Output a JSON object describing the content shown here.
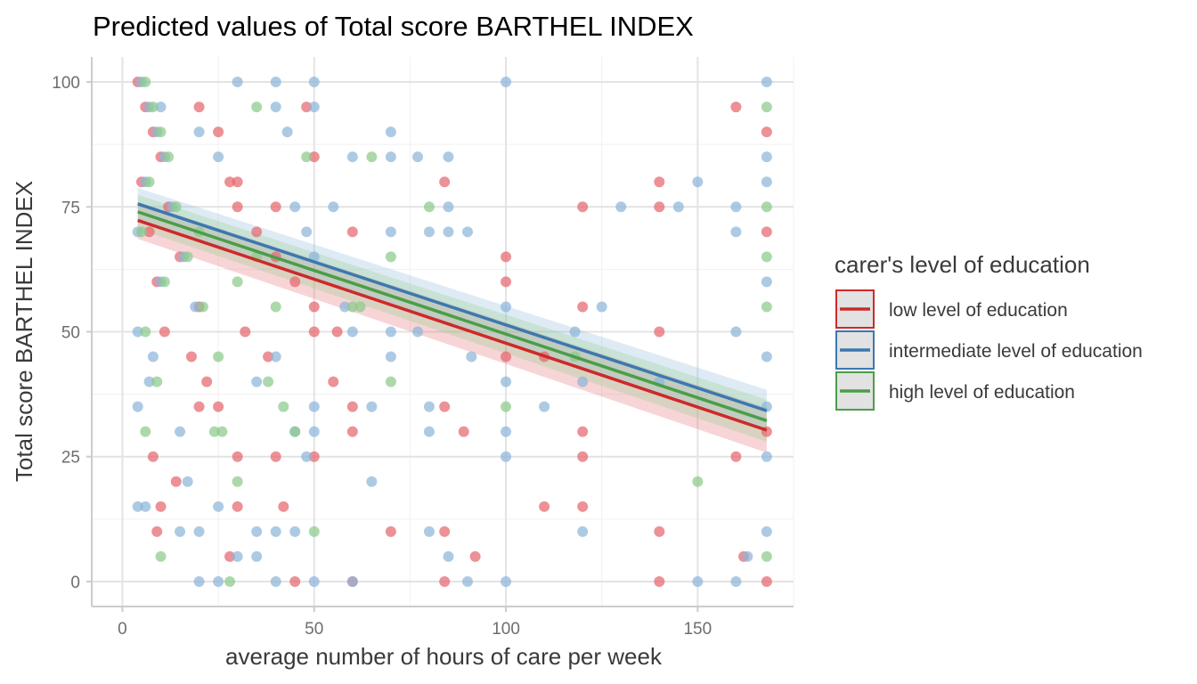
{
  "chart_data": {
    "type": "scatter",
    "title": "Predicted values of Total score BARTHEL INDEX",
    "xlabel": "average number of hours of care per week",
    "ylabel": "Total score BARTHEL INDEX",
    "xlim": [
      -8,
      175
    ],
    "ylim": [
      -5,
      105
    ],
    "x_ticks": [
      0,
      50,
      100,
      150
    ],
    "y_ticks": [
      0,
      25,
      50,
      75,
      100
    ],
    "grid": true,
    "legend": {
      "title": "carer's level of education",
      "placement": "right",
      "items": [
        {
          "label": "low level of education",
          "color": "#CC2A2A"
        },
        {
          "label": "intermediate level of education",
          "color": "#3C78B0"
        },
        {
          "label": "high level of education",
          "color": "#4A9E48"
        }
      ]
    },
    "series": [
      {
        "name": "low level of education",
        "color": "#E4676E",
        "line_color": "#CC2A2A",
        "fit": {
          "x": [
            4,
            168
          ],
          "y": [
            72.3,
            30.3
          ]
        },
        "band": {
          "lower": [
            68.6,
            25.8
          ],
          "upper": [
            76.0,
            34.8
          ]
        },
        "points": [
          [
            4,
            100
          ],
          [
            6,
            95
          ],
          [
            8,
            90
          ],
          [
            10,
            85
          ],
          [
            5,
            80
          ],
          [
            12,
            75
          ],
          [
            7,
            70
          ],
          [
            15,
            65
          ],
          [
            9,
            60
          ],
          [
            20,
            55
          ],
          [
            11,
            50
          ],
          [
            18,
            45
          ],
          [
            22,
            40
          ],
          [
            25,
            35
          ],
          [
            8,
            25
          ],
          [
            14,
            20
          ],
          [
            10,
            15
          ],
          [
            9,
            10
          ],
          [
            30,
            25
          ],
          [
            20,
            95
          ],
          [
            25,
            90
          ],
          [
            28,
            80
          ],
          [
            30,
            75
          ],
          [
            35,
            70
          ],
          [
            40,
            65
          ],
          [
            45,
            60
          ],
          [
            50,
            55
          ],
          [
            32,
            50
          ],
          [
            38,
            45
          ],
          [
            55,
            40
          ],
          [
            60,
            35
          ],
          [
            60,
            30
          ],
          [
            40,
            25
          ],
          [
            42,
            15
          ],
          [
            30,
            15
          ],
          [
            50,
            25
          ],
          [
            48,
            95
          ],
          [
            50,
            85
          ],
          [
            60,
            70
          ],
          [
            70,
            10
          ],
          [
            56,
            50
          ],
          [
            84,
            80
          ],
          [
            84,
            35
          ],
          [
            89,
            30
          ],
          [
            92,
            5
          ],
          [
            84,
            0
          ],
          [
            84,
            10
          ],
          [
            100,
            65
          ],
          [
            100,
            60
          ],
          [
            100,
            45
          ],
          [
            110,
            45
          ],
          [
            110,
            15
          ],
          [
            120,
            75
          ],
          [
            120,
            55
          ],
          [
            120,
            30
          ],
          [
            120,
            25
          ],
          [
            120,
            15
          ],
          [
            140,
            80
          ],
          [
            140,
            75
          ],
          [
            140,
            50
          ],
          [
            140,
            10
          ],
          [
            140,
            0
          ],
          [
            160,
            95
          ],
          [
            160,
            25
          ],
          [
            162,
            5
          ],
          [
            168,
            90
          ],
          [
            168,
            70
          ],
          [
            168,
            30
          ],
          [
            168,
            0
          ],
          [
            45,
            0
          ],
          [
            60,
            0
          ],
          [
            28,
            5
          ],
          [
            20,
            35
          ],
          [
            30,
            80
          ],
          [
            40,
            75
          ],
          [
            50,
            50
          ]
        ]
      },
      {
        "name": "intermediate level of education",
        "color": "#8DB6D9",
        "line_color": "#3C78B0",
        "fit": {
          "x": [
            4,
            168
          ],
          "y": [
            75.6,
            34.2
          ]
        },
        "band": {
          "lower": [
            72.4,
            30.0
          ],
          "upper": [
            78.8,
            38.4
          ]
        },
        "points": [
          [
            5,
            100
          ],
          [
            7,
            95
          ],
          [
            9,
            90
          ],
          [
            11,
            85
          ],
          [
            6,
            80
          ],
          [
            13,
            75
          ],
          [
            4,
            70
          ],
          [
            16,
            65
          ],
          [
            10,
            60
          ],
          [
            19,
            55
          ],
          [
            4,
            50
          ],
          [
            8,
            45
          ],
          [
            7,
            40
          ],
          [
            4,
            35
          ],
          [
            4,
            15
          ],
          [
            6,
            15
          ],
          [
            15,
            30
          ],
          [
            17,
            20
          ],
          [
            15,
            10
          ],
          [
            10,
            95
          ],
          [
            20,
            90
          ],
          [
            25,
            85
          ],
          [
            30,
            100
          ],
          [
            40,
            100
          ],
          [
            50,
            100
          ],
          [
            50,
            95
          ],
          [
            40,
            95
          ],
          [
            43,
            90
          ],
          [
            45,
            75
          ],
          [
            48,
            70
          ],
          [
            50,
            65
          ],
          [
            55,
            75
          ],
          [
            58,
            55
          ],
          [
            60,
            50
          ],
          [
            40,
            45
          ],
          [
            35,
            40
          ],
          [
            45,
            30
          ],
          [
            50,
            35
          ],
          [
            50,
            30
          ],
          [
            48,
            25
          ],
          [
            65,
            20
          ],
          [
            65,
            35
          ],
          [
            60,
            85
          ],
          [
            70,
            90
          ],
          [
            70,
            85
          ],
          [
            70,
            70
          ],
          [
            70,
            50
          ],
          [
            70,
            45
          ],
          [
            77,
            85
          ],
          [
            77,
            50
          ],
          [
            80,
            70
          ],
          [
            80,
            35
          ],
          [
            80,
            30
          ],
          [
            80,
            10
          ],
          [
            85,
            75
          ],
          [
            85,
            70
          ],
          [
            85,
            5
          ],
          [
            85,
            85
          ],
          [
            90,
            70
          ],
          [
            91,
            45
          ],
          [
            100,
            100
          ],
          [
            100,
            55
          ],
          [
            100,
            40
          ],
          [
            100,
            30
          ],
          [
            100,
            25
          ],
          [
            100,
            0
          ],
          [
            110,
            35
          ],
          [
            118,
            50
          ],
          [
            120,
            40
          ],
          [
            120,
            10
          ],
          [
            125,
            55
          ],
          [
            130,
            75
          ],
          [
            140,
            40
          ],
          [
            145,
            75
          ],
          [
            150,
            80
          ],
          [
            150,
            0
          ],
          [
            160,
            75
          ],
          [
            160,
            70
          ],
          [
            160,
            50
          ],
          [
            160,
            0
          ],
          [
            163,
            5
          ],
          [
            168,
            100
          ],
          [
            168,
            85
          ],
          [
            168,
            80
          ],
          [
            168,
            60
          ],
          [
            168,
            45
          ],
          [
            168,
            25
          ],
          [
            168,
            10
          ],
          [
            168,
            35
          ],
          [
            20,
            0
          ],
          [
            25,
            0
          ],
          [
            30,
            5
          ],
          [
            35,
            5
          ],
          [
            40,
            0
          ],
          [
            50,
            0
          ],
          [
            60,
            0
          ],
          [
            90,
            0
          ],
          [
            25,
            15
          ],
          [
            20,
            10
          ],
          [
            35,
            10
          ],
          [
            40,
            10
          ],
          [
            45,
            10
          ]
        ]
      },
      {
        "name": "high level of education",
        "color": "#8CCB8A",
        "line_color": "#4A9E48",
        "fit": {
          "x": [
            4,
            168
          ],
          "y": [
            74.0,
            32.2
          ]
        },
        "band": {
          "lower": [
            70.6,
            28.0
          ],
          "upper": [
            77.4,
            36.4
          ]
        },
        "points": [
          [
            6,
            100
          ],
          [
            8,
            95
          ],
          [
            10,
            90
          ],
          [
            12,
            85
          ],
          [
            7,
            80
          ],
          [
            14,
            75
          ],
          [
            5,
            70
          ],
          [
            17,
            65
          ],
          [
            11,
            60
          ],
          [
            21,
            55
          ],
          [
            6,
            50
          ],
          [
            9,
            40
          ],
          [
            6,
            30
          ],
          [
            10,
            5
          ],
          [
            24,
            30
          ],
          [
            30,
            20
          ],
          [
            35,
            95
          ],
          [
            40,
            55
          ],
          [
            38,
            40
          ],
          [
            42,
            35
          ],
          [
            45,
            30
          ],
          [
            48,
            85
          ],
          [
            50,
            10
          ],
          [
            60,
            55
          ],
          [
            62,
            55
          ],
          [
            65,
            85
          ],
          [
            70,
            65
          ],
          [
            70,
            40
          ],
          [
            80,
            75
          ],
          [
            100,
            35
          ],
          [
            118,
            45
          ],
          [
            150,
            20
          ],
          [
            168,
            95
          ],
          [
            168,
            75
          ],
          [
            168,
            65
          ],
          [
            168,
            55
          ],
          [
            168,
            5
          ],
          [
            20,
            70
          ],
          [
            25,
            45
          ],
          [
            30,
            60
          ],
          [
            35,
            65
          ],
          [
            26,
            30
          ],
          [
            28,
            0
          ]
        ]
      }
    ]
  }
}
